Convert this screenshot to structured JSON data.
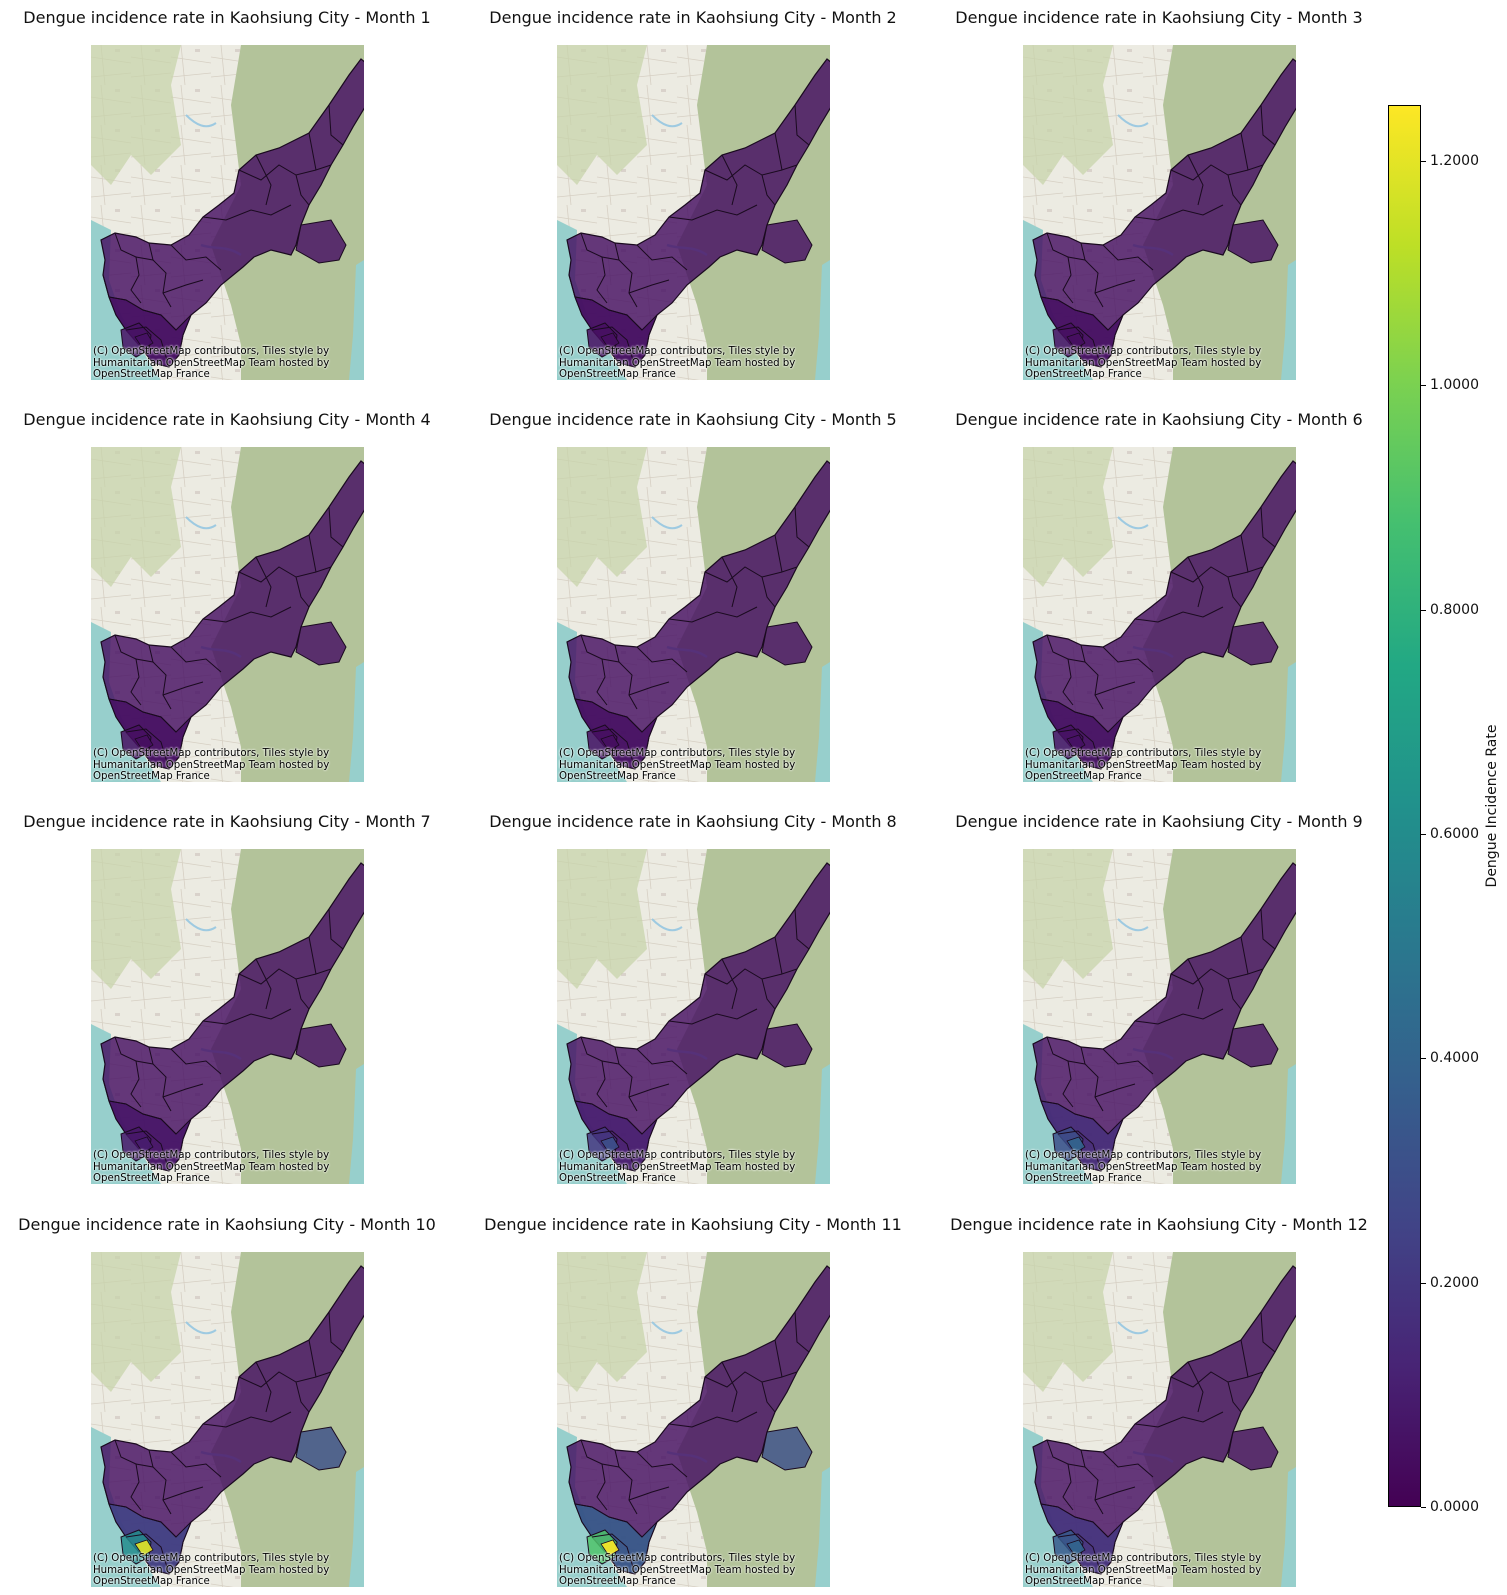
{
  "panels": [
    {
      "title": "Dengue incidence rate in Kaohsiung City - Month 1",
      "month": 1,
      "hotspot_rates": [
        0.05,
        0.06,
        0.06
      ]
    },
    {
      "title": "Dengue incidence rate in Kaohsiung City - Month 2",
      "month": 2,
      "hotspot_rates": [
        0.05,
        0.05,
        0.05
      ]
    },
    {
      "title": "Dengue incidence rate in Kaohsiung City - Month 3",
      "month": 3,
      "hotspot_rates": [
        0.05,
        0.05,
        0.05
      ]
    },
    {
      "title": "Dengue incidence rate in Kaohsiung City - Month 4",
      "month": 4,
      "hotspot_rates": [
        0.05,
        0.05,
        0.05
      ]
    },
    {
      "title": "Dengue incidence rate in Kaohsiung City - Month 5",
      "month": 5,
      "hotspot_rates": [
        0.05,
        0.05,
        0.05
      ]
    },
    {
      "title": "Dengue incidence rate in Kaohsiung City - Month 6",
      "month": 6,
      "hotspot_rates": [
        0.06,
        0.06,
        0.06
      ]
    },
    {
      "title": "Dengue incidence rate in Kaohsiung City - Month 7",
      "month": 7,
      "hotspot_rates": [
        0.08,
        0.08,
        0.1
      ]
    },
    {
      "title": "Dengue incidence rate in Kaohsiung City - Month 8",
      "month": 8,
      "hotspot_rates": [
        0.15,
        0.2,
        0.3
      ]
    },
    {
      "title": "Dengue incidence rate in Kaohsiung City - Month 9",
      "month": 9,
      "hotspot_rates": [
        0.25,
        0.3,
        0.4
      ]
    },
    {
      "title": "Dengue incidence rate in Kaohsiung City - Month 10",
      "month": 10,
      "hotspot_rates": [
        0.4,
        0.6,
        1.2
      ]
    },
    {
      "title": "Dengue incidence rate in Kaohsiung City - Month 11",
      "month": 11,
      "hotspot_rates": [
        0.6,
        0.9,
        1.25
      ]
    },
    {
      "title": "Dengue incidence rate in Kaohsiung City - Month 12",
      "month": 12,
      "hotspot_rates": [
        0.3,
        0.35,
        0.4
      ]
    }
  ],
  "attribution": "(C) OpenStreetMap contributors, Tiles style by\nHumanitarian OpenStreetMap Team hosted by\nOpenStreetMap France",
  "colorbar": {
    "label": "Dengue Incidence Rate",
    "min": 0.0,
    "max": 1.25,
    "ticks": [
      "0.0000",
      "0.2000",
      "0.4000",
      "0.6000",
      "0.8000",
      "1.0000",
      "1.2000"
    ],
    "tick_values": [
      0.0,
      0.2,
      0.4,
      0.6,
      0.8,
      1.0,
      1.2
    ],
    "colormap": "viridis"
  }
}
